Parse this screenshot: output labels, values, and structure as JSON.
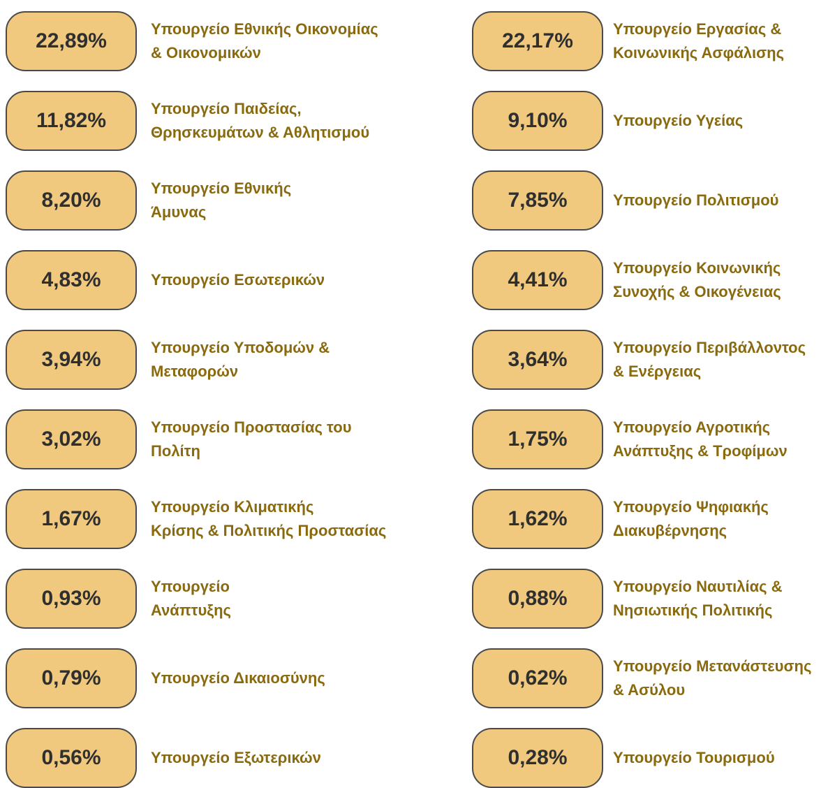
{
  "items": [
    {
      "value": "22,89%",
      "label": [
        "Υπουργείο Εθνικής Οικονομίας",
        "& Οικονομικών"
      ]
    },
    {
      "value": "22,17%",
      "label": [
        "Υπουργείο Εργασίας &",
        "Κοινωνικής Ασφάλισης"
      ]
    },
    {
      "value": "11,82%",
      "label": [
        "Υπουργείο Παιδείας,",
        "Θρησκευμάτων & Αθλητισμού"
      ]
    },
    {
      "value": "9,10%",
      "label": [
        "Υπουργείο Υγείας"
      ]
    },
    {
      "value": "8,20%",
      "label": [
        "Υπουργείο Εθνικής",
        "Άμυνας"
      ]
    },
    {
      "value": "7,85%",
      "label": [
        "Υπουργείο Πολιτισμού"
      ]
    },
    {
      "value": "4,83%",
      "label": [
        "Υπουργείο Εσωτερικών"
      ]
    },
    {
      "value": "4,41%",
      "label": [
        "Υπουργείο Κοινωνικής",
        "Συνοχής & Οικογένειας"
      ]
    },
    {
      "value": "3,94%",
      "label": [
        "Υπουργείο Υποδομών &",
        "Μεταφορών"
      ]
    },
    {
      "value": "3,64%",
      "label": [
        "Υπουργείο Περιβάλλοντος",
        "& Ενέργειας"
      ]
    },
    {
      "value": "3,02%",
      "label": [
        "Υπουργείο Προστασίας του",
        "Πολίτη"
      ]
    },
    {
      "value": "1,75%",
      "label": [
        "Υπουργείο Αγροτικής",
        "Ανάπτυξης & Τροφίμων"
      ]
    },
    {
      "value": "1,67%",
      "label": [
        "Υπουργείο Κλιματικής",
        "Κρίσης & Πολιτικής Προστασίας"
      ]
    },
    {
      "value": "1,62%",
      "label": [
        "Υπουργείο Ψηφιακής",
        "Διακυβέρνησης"
      ]
    },
    {
      "value": "0,93%",
      "label": [
        "Υπουργείο",
        "Ανάπτυξης"
      ]
    },
    {
      "value": "0,88%",
      "label": [
        "Υπουργείο Ναυτιλίας &",
        "Νησιωτικής Πολιτικής"
      ]
    },
    {
      "value": "0,79%",
      "label": [
        "Υπουργείο Δικαιοσύνης"
      ]
    },
    {
      "value": "0,62%",
      "label": [
        "Υπουργείο Μετανάστευσης",
        "& Ασύλου"
      ]
    },
    {
      "value": "0,56%",
      "label": [
        "Υπουργείο Εξωτερικών"
      ]
    },
    {
      "value": "0,28%",
      "label": [
        "Υπουργείο Τουρισμού"
      ]
    }
  ]
}
